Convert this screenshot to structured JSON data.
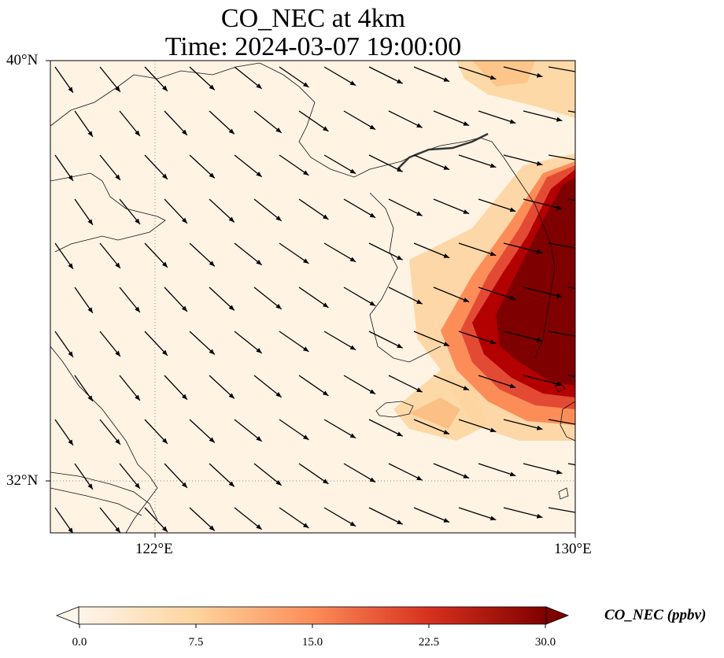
{
  "title": {
    "line1": "CO_NEC at 4km",
    "line2": "Time: 2024-03-07 19:00:00"
  },
  "map": {
    "lat_labels": [
      "40°N",
      "32°N"
    ],
    "lon_labels": [
      "122°E",
      "130°E"
    ],
    "extent": {
      "lon_min": 120,
      "lon_max": 130,
      "lat_min": 31,
      "lat_max": 40
    },
    "gridlines": {
      "lon": 122,
      "lat": 32,
      "style": "dotted"
    },
    "plume": "high CO concentration (~25-30 ppbv) over Korean Peninsula southeast, lighter (~5-12 ppbv) fringes north and south",
    "wind": "northwesterly to westerly flow, arrows pointing southeast/east"
  },
  "colorbar": {
    "label": "CO_NEC (ppbv)",
    "ticks": [
      "0.0",
      "7.5",
      "15.0",
      "22.5",
      "30.0"
    ],
    "min": 0,
    "max": 30,
    "colors": [
      "#fff5eb",
      "#fdd49e",
      "#fc8d59",
      "#d7301f",
      "#7f0000"
    ],
    "extend": "both"
  }
}
